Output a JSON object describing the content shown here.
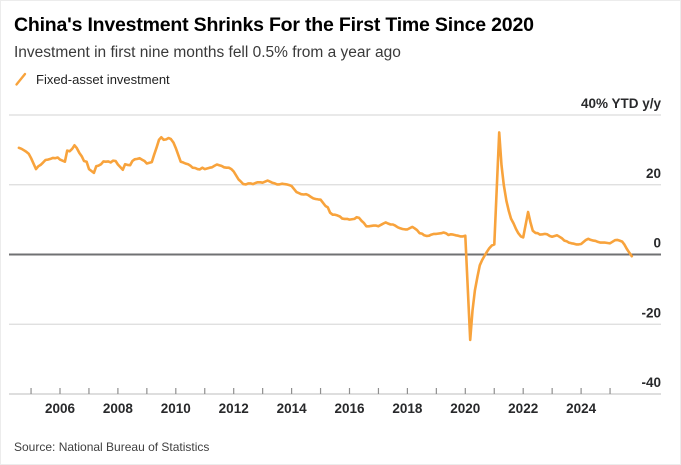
{
  "header": {
    "title": "China's Investment Shrinks For the First Time Since 2020",
    "subtitle": "Investment in first nine months fell 0.5% from a year ago"
  },
  "legend": {
    "label": "Fixed-asset investment"
  },
  "source": "Source: National Bureau of Statistics",
  "colors": {
    "line": "#F8A33C",
    "grid": "#DCDCDC",
    "zero_line": "#707173",
    "axis_line": "#C9C9C9",
    "axis_tick": "#8F8F8F",
    "axis_label": "#28292B"
  },
  "chart_data": {
    "type": "line",
    "title": "China's Investment Shrinks For the First Time Since 2020",
    "subtitle": "Investment in first nine months fell 0.5% from a year ago",
    "unit_label": "40% YTD y/y",
    "ylabel": "YTD y/y %",
    "ylim": [
      -40,
      40
    ],
    "xlim": [
      2004.25,
      2026.0
    ],
    "grid": true,
    "legend_position": "top-left",
    "y_ticks": [
      {
        "value": 40,
        "label": "40% YTD y/y"
      },
      {
        "value": 20,
        "label": "20"
      },
      {
        "value": 0,
        "label": "0"
      },
      {
        "value": -20,
        "label": "-20"
      },
      {
        "value": -40,
        "label": "-40"
      }
    ],
    "x_labels": [
      {
        "year": 2006,
        "label": "2006"
      },
      {
        "year": 2008,
        "label": "2008"
      },
      {
        "year": 2010,
        "label": "2010"
      },
      {
        "year": 2012,
        "label": "2012"
      },
      {
        "year": 2014,
        "label": "2014"
      },
      {
        "year": 2016,
        "label": "2016"
      },
      {
        "year": 2018,
        "label": "2018"
      },
      {
        "year": 2020,
        "label": "2020"
      },
      {
        "year": 2022,
        "label": "2022"
      },
      {
        "year": 2024,
        "label": "2024"
      }
    ],
    "x_minor_ticks": {
      "from": 2005,
      "to": 2025,
      "step": 1
    },
    "series": [
      {
        "name": "Fixed-asset investment",
        "points": [
          [
            2004.58,
            30.6
          ],
          [
            2004.67,
            30.3
          ],
          [
            2004.75,
            29.9
          ],
          [
            2004.83,
            29.5
          ],
          [
            2004.92,
            28.9
          ],
          [
            2005.0,
            27.6
          ],
          [
            2005.17,
            24.5
          ],
          [
            2005.25,
            25.3
          ],
          [
            2005.33,
            25.7
          ],
          [
            2005.42,
            26.4
          ],
          [
            2005.5,
            27.1
          ],
          [
            2005.58,
            27.2
          ],
          [
            2005.67,
            27.4
          ],
          [
            2005.75,
            27.7
          ],
          [
            2005.83,
            27.6
          ],
          [
            2005.92,
            27.8
          ],
          [
            2006.0,
            27.2
          ],
          [
            2006.17,
            26.6
          ],
          [
            2006.25,
            29.8
          ],
          [
            2006.33,
            29.6
          ],
          [
            2006.42,
            30.3
          ],
          [
            2006.5,
            31.3
          ],
          [
            2006.58,
            30.5
          ],
          [
            2006.67,
            29.1
          ],
          [
            2006.75,
            28.2
          ],
          [
            2006.83,
            26.8
          ],
          [
            2006.92,
            26.6
          ],
          [
            2007.0,
            24.5
          ],
          [
            2007.17,
            23.4
          ],
          [
            2007.25,
            25.3
          ],
          [
            2007.33,
            25.5
          ],
          [
            2007.42,
            25.9
          ],
          [
            2007.5,
            26.7
          ],
          [
            2007.58,
            26.6
          ],
          [
            2007.67,
            26.7
          ],
          [
            2007.75,
            26.4
          ],
          [
            2007.83,
            26.9
          ],
          [
            2007.92,
            26.8
          ],
          [
            2008.0,
            25.8
          ],
          [
            2008.17,
            24.3
          ],
          [
            2008.25,
            25.9
          ],
          [
            2008.33,
            25.7
          ],
          [
            2008.42,
            25.6
          ],
          [
            2008.5,
            26.8
          ],
          [
            2008.58,
            27.3
          ],
          [
            2008.67,
            27.4
          ],
          [
            2008.75,
            27.6
          ],
          [
            2008.83,
            27.2
          ],
          [
            2008.92,
            26.8
          ],
          [
            2009.0,
            26.1
          ],
          [
            2009.17,
            26.5
          ],
          [
            2009.25,
            28.6
          ],
          [
            2009.33,
            30.5
          ],
          [
            2009.42,
            32.9
          ],
          [
            2009.5,
            33.6
          ],
          [
            2009.58,
            32.9
          ],
          [
            2009.67,
            33.0
          ],
          [
            2009.75,
            33.4
          ],
          [
            2009.83,
            33.1
          ],
          [
            2009.92,
            32.1
          ],
          [
            2010.0,
            30.5
          ],
          [
            2010.17,
            26.6
          ],
          [
            2010.25,
            26.4
          ],
          [
            2010.33,
            26.1
          ],
          [
            2010.42,
            25.9
          ],
          [
            2010.5,
            25.5
          ],
          [
            2010.58,
            24.9
          ],
          [
            2010.67,
            24.8
          ],
          [
            2010.75,
            24.5
          ],
          [
            2010.83,
            24.4
          ],
          [
            2010.92,
            24.9
          ],
          [
            2011.0,
            24.5
          ],
          [
            2011.17,
            24.9
          ],
          [
            2011.25,
            25.0
          ],
          [
            2011.33,
            25.4
          ],
          [
            2011.42,
            25.8
          ],
          [
            2011.5,
            25.6
          ],
          [
            2011.58,
            25.4
          ],
          [
            2011.67,
            25.0
          ],
          [
            2011.75,
            24.9
          ],
          [
            2011.83,
            24.9
          ],
          [
            2011.92,
            24.5
          ],
          [
            2012.0,
            23.8
          ],
          [
            2012.17,
            21.5
          ],
          [
            2012.25,
            20.9
          ],
          [
            2012.33,
            20.2
          ],
          [
            2012.42,
            20.1
          ],
          [
            2012.5,
            20.4
          ],
          [
            2012.58,
            20.4
          ],
          [
            2012.67,
            20.2
          ],
          [
            2012.75,
            20.5
          ],
          [
            2012.83,
            20.7
          ],
          [
            2012.92,
            20.7
          ],
          [
            2013.0,
            20.6
          ],
          [
            2013.17,
            21.2
          ],
          [
            2013.25,
            20.9
          ],
          [
            2013.33,
            20.6
          ],
          [
            2013.42,
            20.4
          ],
          [
            2013.5,
            20.1
          ],
          [
            2013.58,
            20.1
          ],
          [
            2013.67,
            20.3
          ],
          [
            2013.75,
            20.2
          ],
          [
            2013.83,
            20.1
          ],
          [
            2013.92,
            19.9
          ],
          [
            2014.0,
            19.6
          ],
          [
            2014.17,
            17.9
          ],
          [
            2014.25,
            17.6
          ],
          [
            2014.33,
            17.3
          ],
          [
            2014.42,
            17.2
          ],
          [
            2014.5,
            17.3
          ],
          [
            2014.58,
            17.0
          ],
          [
            2014.67,
            16.5
          ],
          [
            2014.75,
            16.1
          ],
          [
            2014.83,
            15.9
          ],
          [
            2014.92,
            15.8
          ],
          [
            2015.0,
            15.7
          ],
          [
            2015.17,
            13.9
          ],
          [
            2015.25,
            13.5
          ],
          [
            2015.33,
            12.0
          ],
          [
            2015.42,
            11.4
          ],
          [
            2015.5,
            11.4
          ],
          [
            2015.58,
            11.2
          ],
          [
            2015.67,
            10.9
          ],
          [
            2015.75,
            10.3
          ],
          [
            2015.83,
            10.2
          ],
          [
            2015.92,
            10.2
          ],
          [
            2016.0,
            10.0
          ],
          [
            2016.17,
            10.2
          ],
          [
            2016.25,
            10.7
          ],
          [
            2016.33,
            10.5
          ],
          [
            2016.42,
            9.6
          ],
          [
            2016.5,
            9.0
          ],
          [
            2016.58,
            8.1
          ],
          [
            2016.67,
            8.1
          ],
          [
            2016.75,
            8.2
          ],
          [
            2016.83,
            8.3
          ],
          [
            2016.92,
            8.3
          ],
          [
            2017.0,
            8.1
          ],
          [
            2017.17,
            8.9
          ],
          [
            2017.25,
            9.2
          ],
          [
            2017.33,
            8.9
          ],
          [
            2017.42,
            8.6
          ],
          [
            2017.5,
            8.6
          ],
          [
            2017.58,
            8.3
          ],
          [
            2017.67,
            7.8
          ],
          [
            2017.75,
            7.5
          ],
          [
            2017.83,
            7.3
          ],
          [
            2017.92,
            7.2
          ],
          [
            2018.0,
            7.2
          ],
          [
            2018.17,
            7.9
          ],
          [
            2018.25,
            7.5
          ],
          [
            2018.33,
            7.0
          ],
          [
            2018.42,
            6.1
          ],
          [
            2018.5,
            6.0
          ],
          [
            2018.58,
            5.5
          ],
          [
            2018.67,
            5.3
          ],
          [
            2018.75,
            5.4
          ],
          [
            2018.83,
            5.7
          ],
          [
            2018.92,
            5.9
          ],
          [
            2019.0,
            5.9
          ],
          [
            2019.17,
            6.1
          ],
          [
            2019.25,
            6.3
          ],
          [
            2019.33,
            6.1
          ],
          [
            2019.42,
            5.6
          ],
          [
            2019.5,
            5.8
          ],
          [
            2019.58,
            5.7
          ],
          [
            2019.67,
            5.5
          ],
          [
            2019.75,
            5.4
          ],
          [
            2019.83,
            5.2
          ],
          [
            2019.92,
            5.2
          ],
          [
            2020.0,
            5.4
          ],
          [
            2020.17,
            -24.5
          ],
          [
            2020.25,
            -16.1
          ],
          [
            2020.33,
            -10.3
          ],
          [
            2020.42,
            -6.3
          ],
          [
            2020.5,
            -3.1
          ],
          [
            2020.58,
            -1.6
          ],
          [
            2020.67,
            -0.3
          ],
          [
            2020.75,
            0.8
          ],
          [
            2020.83,
            1.8
          ],
          [
            2020.92,
            2.6
          ],
          [
            2021.0,
            2.9
          ],
          [
            2021.17,
            35.0
          ],
          [
            2021.25,
            25.6
          ],
          [
            2021.33,
            19.9
          ],
          [
            2021.42,
            15.4
          ],
          [
            2021.5,
            12.6
          ],
          [
            2021.58,
            10.3
          ],
          [
            2021.67,
            8.9
          ],
          [
            2021.75,
            7.3
          ],
          [
            2021.83,
            6.1
          ],
          [
            2021.92,
            5.2
          ],
          [
            2022.0,
            4.9
          ],
          [
            2022.17,
            12.2
          ],
          [
            2022.25,
            9.3
          ],
          [
            2022.33,
            6.8
          ],
          [
            2022.42,
            6.2
          ],
          [
            2022.5,
            6.1
          ],
          [
            2022.58,
            5.7
          ],
          [
            2022.67,
            5.8
          ],
          [
            2022.75,
            5.9
          ],
          [
            2022.83,
            5.8
          ],
          [
            2022.92,
            5.3
          ],
          [
            2023.0,
            5.1
          ],
          [
            2023.17,
            5.5
          ],
          [
            2023.25,
            5.1
          ],
          [
            2023.33,
            4.7
          ],
          [
            2023.42,
            4.0
          ],
          [
            2023.5,
            3.8
          ],
          [
            2023.58,
            3.4
          ],
          [
            2023.67,
            3.2
          ],
          [
            2023.75,
            3.1
          ],
          [
            2023.83,
            2.9
          ],
          [
            2023.92,
            2.9
          ],
          [
            2024.0,
            3.0
          ],
          [
            2024.17,
            4.2
          ],
          [
            2024.25,
            4.5
          ],
          [
            2024.33,
            4.2
          ],
          [
            2024.42,
            4.0
          ],
          [
            2024.5,
            3.9
          ],
          [
            2024.58,
            3.6
          ],
          [
            2024.67,
            3.4
          ],
          [
            2024.75,
            3.4
          ],
          [
            2024.83,
            3.4
          ],
          [
            2024.92,
            3.3
          ],
          [
            2025.0,
            3.2
          ],
          [
            2025.17,
            4.1
          ],
          [
            2025.25,
            4.2
          ],
          [
            2025.33,
            4.0
          ],
          [
            2025.42,
            3.7
          ],
          [
            2025.5,
            2.8
          ],
          [
            2025.58,
            1.6
          ],
          [
            2025.67,
            0.5
          ],
          [
            2025.75,
            -0.5
          ]
        ]
      }
    ]
  }
}
